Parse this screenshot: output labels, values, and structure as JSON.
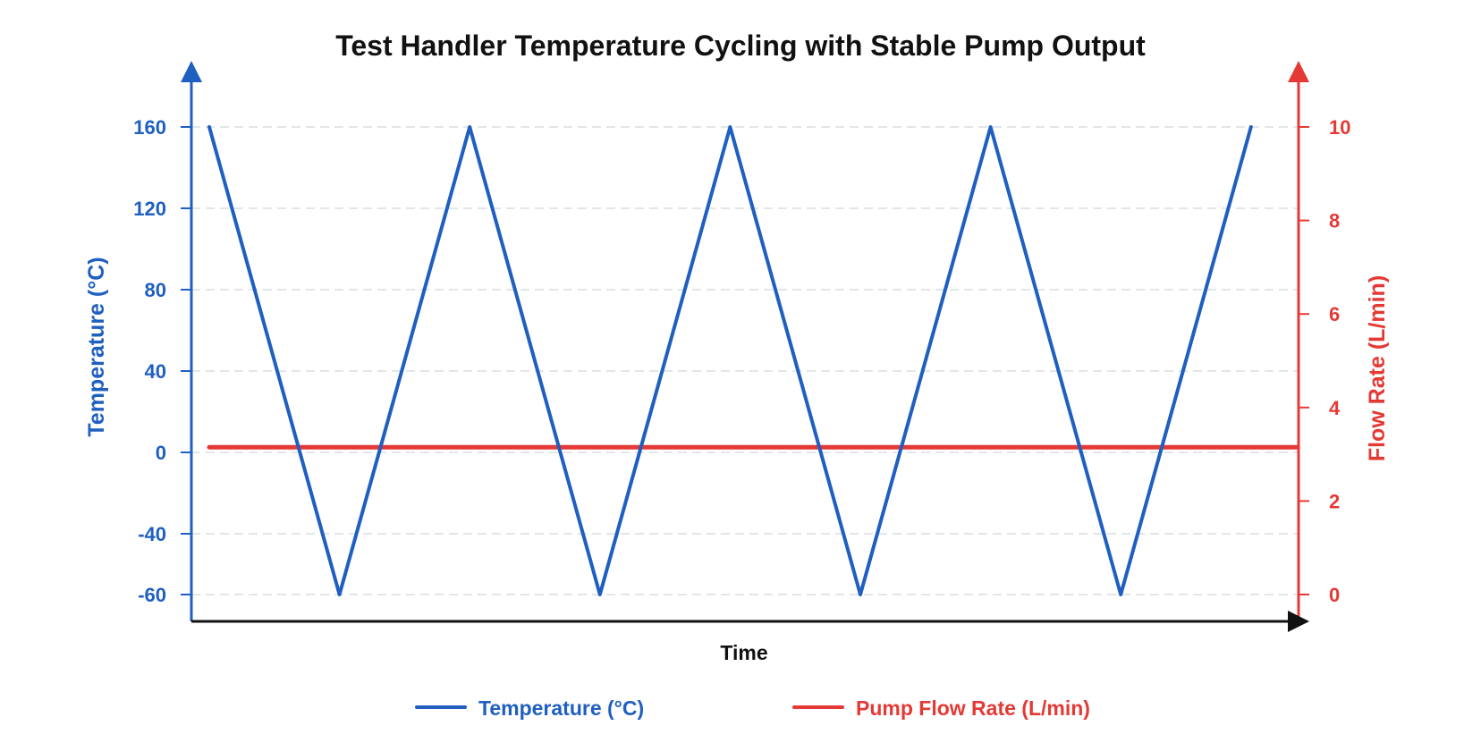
{
  "chart_data": {
    "type": "line",
    "title": "Test Handler Temperature Cycling with Stable Pump Output",
    "xlabel": "Time",
    "ylabel_left": "Temperature (°C)",
    "ylabel_right": "Flow Rate (L/min)",
    "left_axis": {
      "ticks": [
        160,
        120,
        80,
        40,
        0,
        -40,
        -60
      ],
      "tick_labels": [
        "160",
        "120",
        "80",
        "40",
        "0",
        "-40",
        "-60"
      ],
      "ylim": [
        -60,
        160
      ]
    },
    "right_axis": {
      "ticks": [
        10,
        8,
        6,
        4,
        2,
        0
      ],
      "tick_labels": [
        "10",
        "8",
        "6",
        "4",
        "2",
        "0"
      ],
      "ylim": [
        0,
        10
      ]
    },
    "grid": true,
    "legend_position": "bottom",
    "series": [
      {
        "name": "Temperature (°C)",
        "axis": "left",
        "color": "#1f5fbf",
        "points": [
          {
            "x": 0,
            "y": 160
          },
          {
            "x": 1,
            "y": -60
          },
          {
            "x": 2,
            "y": 160
          },
          {
            "x": 3,
            "y": -60
          },
          {
            "x": 4,
            "y": 160
          },
          {
            "x": 5,
            "y": -60
          },
          {
            "x": 6,
            "y": 160
          },
          {
            "x": 7,
            "y": -60
          },
          {
            "x": 8,
            "y": 160
          }
        ]
      },
      {
        "name": "Pump Flow Rate (L/min)",
        "axis": "right",
        "color": "#e53935",
        "points": [
          {
            "x": 0,
            "y": 3.15
          },
          {
            "x": 1,
            "y": 3.15
          },
          {
            "x": 2,
            "y": 3.15
          },
          {
            "x": 3,
            "y": 3.15
          },
          {
            "x": 4,
            "y": 3.15
          },
          {
            "x": 5,
            "y": 3.15
          },
          {
            "x": 6,
            "y": 3.15
          },
          {
            "x": 7,
            "y": 3.15
          },
          {
            "x": 8,
            "y": 3.15
          },
          {
            "x": 8.35,
            "y": 3.15
          }
        ]
      }
    ]
  }
}
